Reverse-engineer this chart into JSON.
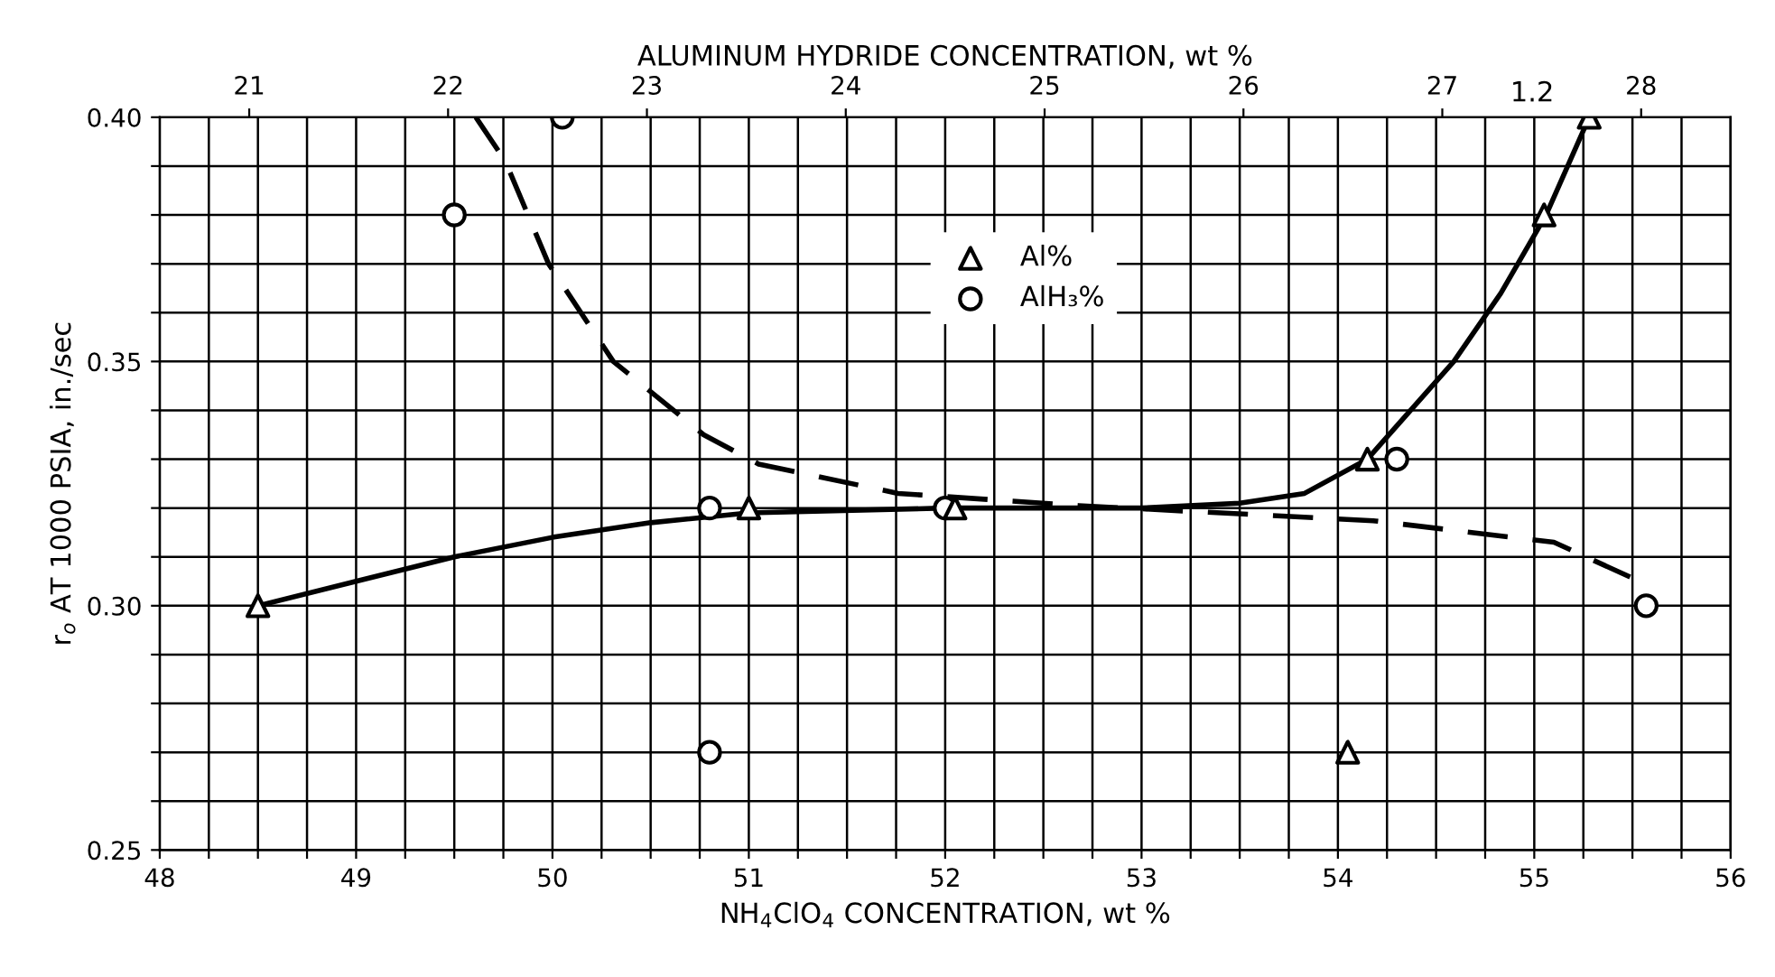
{
  "chart_data": {
    "type": "scatter",
    "xlabel": "NH$_{4}$ClO$_{4}$ CONCENTRATION, wt %",
    "x2label": "ALUMINUM HYDRIDE CONCENTRATION, wt %",
    "ylabel": "r$_{o}$ AT 1000 PSIA, in./sec",
    "annotations": [
      {
        "text": "1.2",
        "x": 55.28,
        "y": 0.4
      }
    ],
    "xlim": [
      48,
      56
    ],
    "ylim": [
      0.25,
      0.4
    ],
    "x2lim": [
      20.55,
      28.45
    ],
    "x2ticks": [
      21,
      22,
      23,
      24,
      25,
      26,
      27,
      28
    ],
    "xticks": [
      48,
      {
        "value": 48.25,
        "label": null
      },
      {
        "value": 48.5,
        "label": null
      },
      {
        "value": 48.75,
        "label": null
      },
      49,
      {
        "value": 49.25,
        "label": null
      },
      {
        "value": 49.5,
        "label": null
      },
      {
        "value": 49.75,
        "label": null
      },
      50,
      {
        "value": 50.25,
        "label": null
      },
      {
        "value": 50.5,
        "label": null
      },
      {
        "value": 50.75,
        "label": null
      },
      51,
      {
        "value": 51.25,
        "label": null
      },
      {
        "value": 51.5,
        "label": null
      },
      {
        "value": 51.75,
        "label": null
      },
      52,
      {
        "value": 52.25,
        "label": null
      },
      {
        "value": 52.5,
        "label": null
      },
      {
        "value": 52.75,
        "label": null
      },
      53,
      {
        "value": 53.25,
        "label": null
      },
      {
        "value": 53.5,
        "label": null
      },
      {
        "value": 53.75,
        "label": null
      },
      54,
      {
        "value": 54.25,
        "label": null
      },
      {
        "value": 54.5,
        "label": null
      },
      {
        "value": 54.75,
        "label": null
      },
      55,
      {
        "value": 55.25,
        "label": null
      },
      {
        "value": 55.5,
        "label": null
      },
      {
        "value": 55.75,
        "label": null
      },
      56
    ],
    "yticks": [
      {
        "value": 0.25,
        "label": "0.25"
      },
      {
        "value": 0.26,
        "label": null
      },
      {
        "value": 0.27,
        "label": null
      },
      {
        "value": 0.28,
        "label": null
      },
      {
        "value": 0.29,
        "label": null
      },
      {
        "value": 0.3,
        "label": "0.30"
      },
      {
        "value": 0.31,
        "label": null
      },
      {
        "value": 0.32,
        "label": null
      },
      {
        "value": 0.33,
        "label": null
      },
      {
        "value": 0.34,
        "label": null
      },
      {
        "value": 0.35,
        "label": "0.35"
      },
      {
        "value": 0.36,
        "label": null
      },
      {
        "value": 0.37,
        "label": null
      },
      {
        "value": 0.38,
        "label": null
      },
      {
        "value": 0.39,
        "label": null
      },
      {
        "value": 0.4,
        "label": "0.40"
      }
    ],
    "grid": true,
    "legend": "top",
    "series": [
      {
        "name": "Al%",
        "marker": "triangle",
        "color": "#000000",
        "x": [
          48.5,
          51.0,
          52.05,
          54.15,
          55.05,
          55.28,
          54.05
        ],
        "values": [
          0.3,
          0.32,
          0.32,
          0.33,
          0.38,
          0.4,
          0.27
        ]
      },
      {
        "name": "AlH₃%",
        "marker": "circle",
        "color": "#000000",
        "x": [
          50.05,
          49.5,
          50.8,
          50.8,
          52.0,
          54.3,
          55.57
        ],
        "values": [
          0.4,
          0.38,
          0.32,
          0.27,
          0.32,
          0.33,
          0.3
        ]
      },
      {
        "type": "line",
        "line_style": "solid",
        "marker": "none",
        "color": "#000000",
        "x": [
          48.5,
          49.0,
          49.5,
          50.0,
          50.5,
          51.0,
          52.0,
          53.0,
          53.5,
          53.83,
          54.15,
          54.59,
          54.83,
          55.06,
          55.28
        ],
        "values": [
          0.3,
          0.305,
          0.31,
          0.314,
          0.317,
          0.319,
          0.32,
          0.32,
          0.321,
          0.323,
          0.33,
          0.35,
          0.364,
          0.38,
          0.4
        ]
      },
      {
        "type": "line",
        "line_style": "dashed",
        "marker": "none",
        "color": "#000000",
        "x": [
          49.61,
          49.76,
          49.98,
          50.31,
          50.77,
          51.05,
          51.76,
          52.68,
          54.18,
          55.1,
          55.59
        ],
        "values": [
          0.4,
          0.391,
          0.37,
          0.35,
          0.335,
          0.329,
          0.323,
          0.3205,
          0.3174,
          0.313,
          0.304
        ]
      }
    ]
  }
}
